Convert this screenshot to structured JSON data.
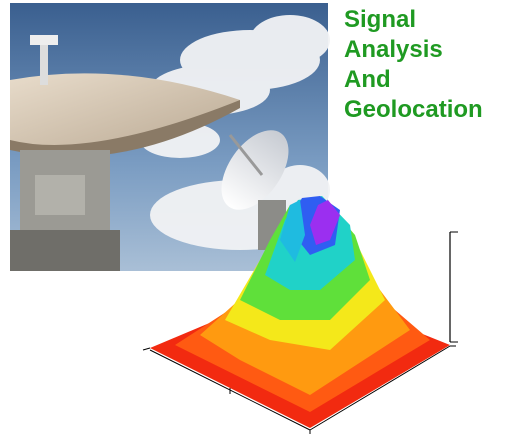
{
  "title_lines": [
    "Signal",
    "Analysis",
    "And",
    "Geolocation"
  ]
}
